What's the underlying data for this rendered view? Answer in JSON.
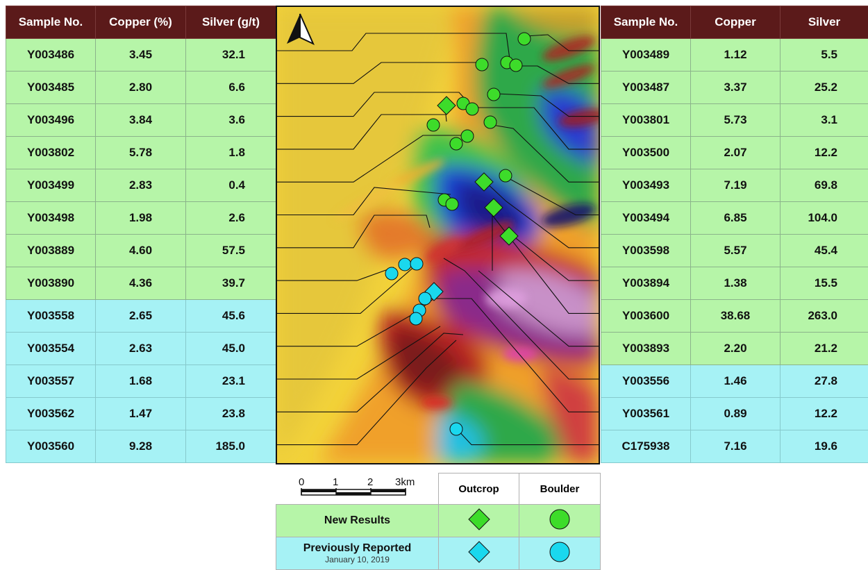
{
  "left_table": {
    "headers": [
      "Sample No.",
      "Copper (%)",
      "Silver (g/t)"
    ],
    "rows": [
      {
        "id": "Y003486",
        "cu": "3.45",
        "ag": "32.1",
        "group": "new"
      },
      {
        "id": "Y003485",
        "cu": "2.80",
        "ag": "6.6",
        "group": "new"
      },
      {
        "id": "Y003496",
        "cu": "3.84",
        "ag": "3.6",
        "group": "new"
      },
      {
        "id": "Y003802",
        "cu": "5.78",
        "ag": "1.8",
        "group": "new"
      },
      {
        "id": "Y003499",
        "cu": "2.83",
        "ag": "0.4",
        "group": "new"
      },
      {
        "id": "Y003498",
        "cu": "1.98",
        "ag": "2.6",
        "group": "new"
      },
      {
        "id": "Y003889",
        "cu": "4.60",
        "ag": "57.5",
        "group": "new"
      },
      {
        "id": "Y003890",
        "cu": "4.36",
        "ag": "39.7",
        "group": "new"
      },
      {
        "id": "Y003558",
        "cu": "2.65",
        "ag": "45.6",
        "group": "prev"
      },
      {
        "id": "Y003554",
        "cu": "2.63",
        "ag": "45.0",
        "group": "prev"
      },
      {
        "id": "Y003557",
        "cu": "1.68",
        "ag": "23.1",
        "group": "prev"
      },
      {
        "id": "Y003562",
        "cu": "1.47",
        "ag": "23.8",
        "group": "prev"
      },
      {
        "id": "Y003560",
        "cu": "9.28",
        "ag": "185.0",
        "group": "prev"
      }
    ]
  },
  "right_table": {
    "headers": [
      "Sample No.",
      "Copper",
      "Silver"
    ],
    "rows": [
      {
        "id": "Y003489",
        "cu": "1.12",
        "ag": "5.5",
        "group": "new"
      },
      {
        "id": "Y003487",
        "cu": "3.37",
        "ag": "25.2",
        "group": "new"
      },
      {
        "id": "Y003801",
        "cu": "5.73",
        "ag": "3.1",
        "group": "new"
      },
      {
        "id": "Y003500",
        "cu": "2.07",
        "ag": "12.2",
        "group": "new"
      },
      {
        "id": "Y003493",
        "cu": "7.19",
        "ag": "69.8",
        "group": "new"
      },
      {
        "id": "Y003494",
        "cu": "6.85",
        "ag": "104.0",
        "group": "new"
      },
      {
        "id": "Y003598",
        "cu": "5.57",
        "ag": "45.4",
        "group": "new"
      },
      {
        "id": "Y003894",
        "cu": "1.38",
        "ag": "15.5",
        "group": "new"
      },
      {
        "id": "Y003600",
        "cu": "38.68",
        "ag": "263.0",
        "group": "new"
      },
      {
        "id": "Y003893",
        "cu": "2.20",
        "ag": "21.2",
        "group": "new"
      },
      {
        "id": "Y003556",
        "cu": "1.46",
        "ag": "27.8",
        "group": "prev"
      },
      {
        "id": "Y003561",
        "cu": "0.89",
        "ag": "12.2",
        "group": "prev"
      },
      {
        "id": "C175938",
        "cu": "7.16",
        "ag": "19.6",
        "group": "prev"
      }
    ]
  },
  "scale": {
    "ticks": [
      "0",
      "1",
      "2",
      "3km"
    ]
  },
  "legend": {
    "col_outcrop": "Outcrop",
    "col_boulder": "Boulder",
    "new_label": "New Results",
    "prev_label": "Previously Reported",
    "prev_date": "January 10, 2019"
  },
  "colors": {
    "new": "#3ddc2a",
    "prev": "#1ad8ee",
    "header": "#5b1a1a"
  }
}
